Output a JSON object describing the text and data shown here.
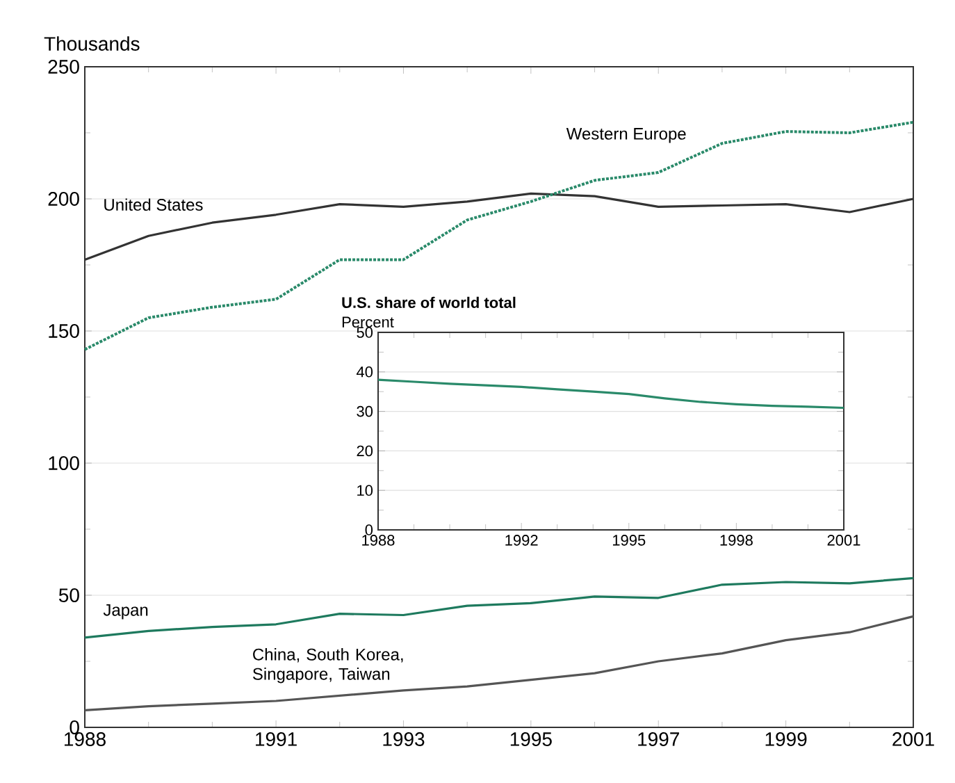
{
  "chart_data": [
    {
      "type": "line",
      "ylabel": "Thousands",
      "x": [
        1988,
        1989,
        1990,
        1991,
        1992,
        1993,
        1994,
        1995,
        1996,
        1997,
        1998,
        1999,
        2000,
        2001
      ],
      "series": [
        {
          "name": "United States",
          "color": "#333333",
          "line_style": "solid",
          "values": [
            177,
            186,
            191,
            194,
            198,
            197,
            199,
            202,
            201,
            197,
            197.5,
            198,
            195,
            200
          ]
        },
        {
          "name": "Western Europe",
          "color": "#2a8a6a",
          "line_style": "dotted",
          "values": [
            143,
            155,
            159,
            162,
            177,
            177,
            192,
            199,
            207,
            210,
            221,
            225.5,
            225,
            229
          ]
        },
        {
          "name": "Japan",
          "color": "#1e7a5e",
          "line_style": "solid",
          "values": [
            34,
            36.5,
            38,
            39,
            43,
            42.5,
            46,
            47,
            49.5,
            49,
            54,
            55,
            54.5,
            56.5
          ]
        },
        {
          "name": "China, South Korea, Singapore, Taiwan",
          "color": "#555555",
          "line_style": "solid",
          "values": [
            6.5,
            8,
            9,
            10,
            12,
            14,
            15.5,
            18,
            20.5,
            25,
            28,
            33,
            36,
            42
          ]
        }
      ],
      "xlim": [
        1988,
        2001
      ],
      "ylim": [
        0,
        250
      ],
      "xticks": [
        1988,
        {
          "value": 1989,
          "label": null
        },
        {
          "value": 1990,
          "label": null
        },
        1991,
        {
          "value": 1992,
          "label": null
        },
        1993,
        {
          "value": 1994,
          "label": null
        },
        1995,
        {
          "value": 1996,
          "label": null
        },
        1997,
        {
          "value": 1998,
          "label": null
        },
        1999,
        {
          "value": 2000,
          "label": null
        },
        2001
      ],
      "yticks": [
        0,
        {
          "value": 25,
          "label": null
        },
        50,
        {
          "value": 75,
          "label": null
        },
        100,
        {
          "value": 125,
          "label": null
        },
        150,
        {
          "value": 175,
          "label": null
        },
        200,
        {
          "value": 225,
          "label": null
        },
        250
      ],
      "grid": "y"
    },
    {
      "type": "line",
      "title": "U.S. share of world total",
      "ylabel": "Percent",
      "x": [
        1988,
        1989,
        1990,
        1991,
        1992,
        1993,
        1994,
        1995,
        1996,
        1997,
        1998,
        1999,
        2000,
        2001
      ],
      "series": [
        {
          "color": "#2a8a6a",
          "line_style": "solid",
          "values": [
            38,
            37.5,
            37,
            36.6,
            36.2,
            35.6,
            35,
            34.4,
            33.3,
            32.4,
            31.8,
            31.4,
            31.2,
            30.9
          ]
        }
      ],
      "xlim": [
        1988,
        2001
      ],
      "ylim": [
        0,
        50
      ],
      "xticks": [
        1988,
        {
          "value": 1989,
          "label": null
        },
        {
          "value": 1990,
          "label": null
        },
        {
          "value": 1991,
          "label": null
        },
        1992,
        {
          "value": 1993,
          "label": null
        },
        {
          "value": 1994,
          "label": null
        },
        1995,
        {
          "value": 1996,
          "label": null
        },
        {
          "value": 1997,
          "label": null
        },
        1998,
        {
          "value": 1999,
          "label": null
        },
        {
          "value": 2000,
          "label": null
        },
        2001
      ],
      "yticks": [
        0,
        {
          "value": 5,
          "label": null
        },
        10,
        {
          "value": 15,
          "label": null
        },
        20,
        {
          "value": 25,
          "label": null
        },
        30,
        {
          "value": 35,
          "label": null
        },
        40,
        {
          "value": 45,
          "label": null
        },
        50
      ],
      "grid": "y"
    }
  ]
}
